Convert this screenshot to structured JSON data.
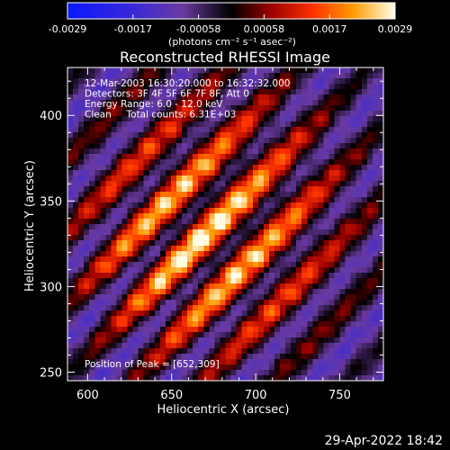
{
  "chart_data": {
    "type": "heatmap",
    "title": "Reconstructed RHESSI Image",
    "xlabel": "Heliocentric X (arcsec)",
    "ylabel": "Heliocentric Y (arcsec)",
    "xlim": [
      588,
      776
    ],
    "ylim": [
      245,
      428
    ],
    "x_ticks": [
      600,
      650,
      700,
      750
    ],
    "y_ticks": [
      250,
      300,
      350,
      400
    ],
    "colorbar": {
      "range": [
        -0.0029,
        0.0029
      ],
      "ticks": [
        "-0.0029",
        "-0.0017",
        "-0.00058",
        "0.00058",
        "0.0017",
        "0.0029"
      ],
      "label": "(photons cm⁻² s⁻¹ asec⁻²)"
    },
    "info_lines": [
      "12-Mar-2003 16:30:20.000 to 16:32:32.000",
      "Detectors: 3F 4F 5F 6F 7F 8F, Att 0",
      "Energy Range: 6.0 - 12.0 keV",
      "Clean     Total counts: 6.31E+03"
    ],
    "peak_label": "Position of Peak = [652,309]",
    "peak_position": [
      652,
      309
    ],
    "grid": false
  },
  "footer": {
    "timestamp": "29-Apr-2022 18:42"
  },
  "colors": {
    "background": "#000000",
    "text": "#ffffff"
  }
}
